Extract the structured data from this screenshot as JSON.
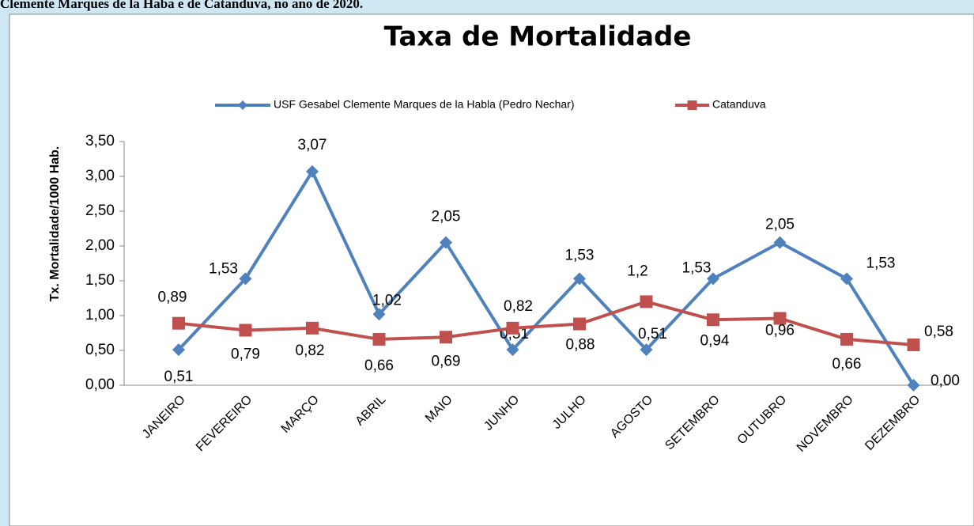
{
  "caption": "Clemente Marques de la Haba e de Catanduva, no ano de 2020.",
  "chart_data": {
    "type": "line",
    "title": "Taxa de Mortalidade",
    "y_label": "Tx. Mortalidade/1000 Hab.",
    "categories": [
      "JANEIRO",
      "FEVEREIRO",
      "MARÇO",
      "ABRIL",
      "MAIO",
      "JUNHO",
      "JULHO",
      "AGOSTO",
      "SETEMBRO",
      "OUTUBRO",
      "NOVEMBRO",
      "DEZEMBRO"
    ],
    "series": [
      {
        "name": "USF Gesabel Clemente Marques de la Habla (Pedro Nechar)",
        "color": "#4f81bd",
        "marker": "diamond",
        "values": [
          0.51,
          1.53,
          3.07,
          1.02,
          2.05,
          0.51,
          1.53,
          0.51,
          1.53,
          2.05,
          1.53,
          0.0
        ],
        "value_labels": [
          "0,51",
          "1,53",
          "3,07",
          "1,02",
          "2,05",
          "0,51",
          "1,53",
          "0,51",
          "1,53",
          "2,05",
          "1,53",
          "0,00"
        ]
      },
      {
        "name": "Catanduva",
        "color": "#c0504d",
        "marker": "square",
        "values": [
          0.89,
          0.79,
          0.82,
          0.66,
          0.69,
          0.82,
          0.88,
          1.2,
          0.94,
          0.96,
          0.66,
          0.58
        ],
        "value_labels": [
          "0,89",
          "0,79",
          "0,82",
          "0,66",
          "0,69",
          "0,82",
          "0,88",
          "1,2",
          "0,94",
          "0,96",
          "0,66",
          "0,58"
        ]
      }
    ],
    "ylim": [
      0,
      3.5
    ],
    "yticks": [
      {
        "value": 0,
        "label": "0,00"
      },
      {
        "value": 0.5,
        "label": "0,50"
      },
      {
        "value": 1,
        "label": "1,00"
      },
      {
        "value": 1.5,
        "label": "1,50"
      },
      {
        "value": 2,
        "label": "2,00"
      },
      {
        "value": 2.5,
        "label": "2,50"
      },
      {
        "value": 3,
        "label": "3,00"
      },
      {
        "value": 3.5,
        "label": "3,50"
      }
    ],
    "legend": "top"
  }
}
